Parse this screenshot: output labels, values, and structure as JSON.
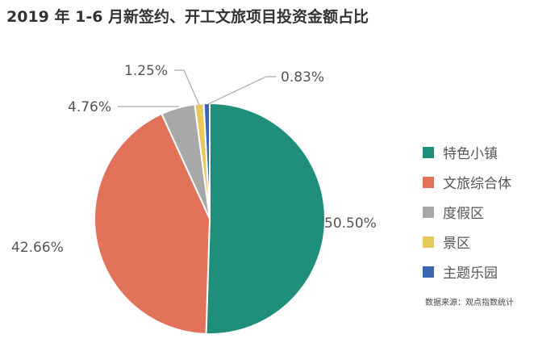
{
  "chart_data": {
    "type": "pie",
    "title": "2019 年 1-6 月新签约、开工文旅项目投资金额占比",
    "slices": [
      {
        "name": "特色小镇",
        "value": 50.5,
        "label": "50.50%",
        "color": "#1f8f7c"
      },
      {
        "name": "文旅综合体",
        "value": 42.66,
        "label": "42.66%",
        "color": "#e2725a"
      },
      {
        "name": "度假区",
        "value": 4.76,
        "label": "4.76%",
        "color": "#a8a8a8"
      },
      {
        "name": "景区",
        "value": 1.25,
        "label": "1.25%",
        "color": "#e8c85a"
      },
      {
        "name": "主题乐园",
        "value": 0.83,
        "label": "0.83%",
        "color": "#3b66b0"
      }
    ],
    "start_angle": "top, clockwise",
    "legend_position": "right",
    "source": "数据来源：观点指数统计"
  }
}
